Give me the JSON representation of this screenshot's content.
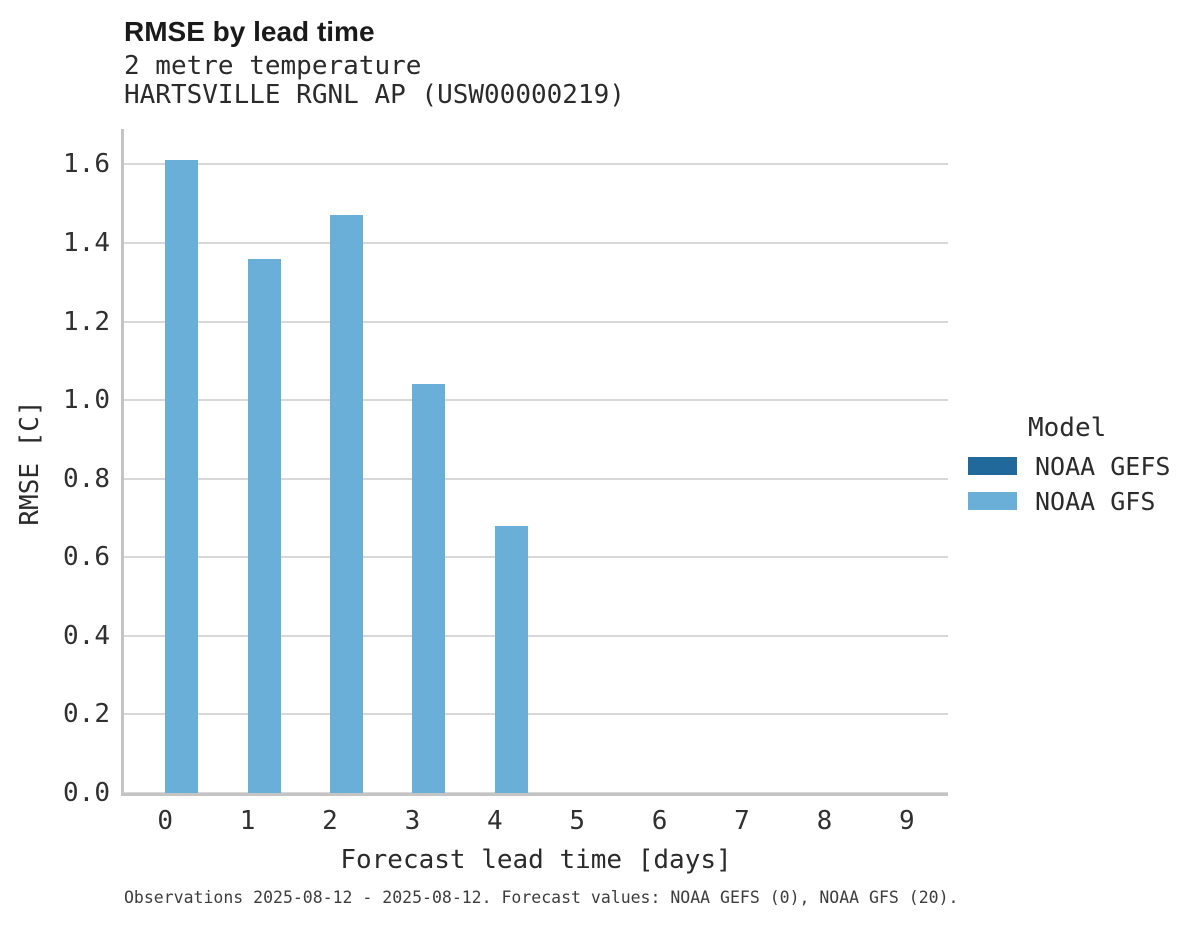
{
  "header": {
    "title": "RMSE by lead time",
    "subtitle_line1": "2 metre temperature",
    "subtitle_line2": "HARTSVILLE RGNL AP (USW00000219)"
  },
  "chart_data": {
    "type": "bar",
    "title": "RMSE by lead time",
    "subtitle": [
      "2 metre temperature",
      "HARTSVILLE RGNL AP (USW00000219)"
    ],
    "categories": [
      "0",
      "1",
      "2",
      "3",
      "4",
      "5",
      "6",
      "7",
      "8",
      "9"
    ],
    "series": [
      {
        "name": "NOAA GEFS",
        "color": "#20699a",
        "values": [
          null,
          null,
          null,
          null,
          null,
          null,
          null,
          null,
          null,
          null
        ]
      },
      {
        "name": "NOAA GFS",
        "color": "#69afd8",
        "values": [
          1.61,
          1.36,
          1.47,
          1.04,
          0.68,
          null,
          null,
          null,
          null,
          null
        ]
      }
    ],
    "xlabel": "Forecast lead time [days]",
    "ylabel": "RMSE [C]",
    "ylim": [
      0,
      1.69
    ],
    "y_ticks": [
      "0.0",
      "0.2",
      "0.4",
      "0.6",
      "0.8",
      "1.0",
      "1.2",
      "1.4",
      "1.6"
    ],
    "grid": "horizontal",
    "legend_title": "Model",
    "legend_position": "right"
  },
  "footer": {
    "caption": "Observations 2025-08-12 - 2025-08-12. Forecast values: NOAA GEFS (0), NOAA GFS (20)."
  }
}
